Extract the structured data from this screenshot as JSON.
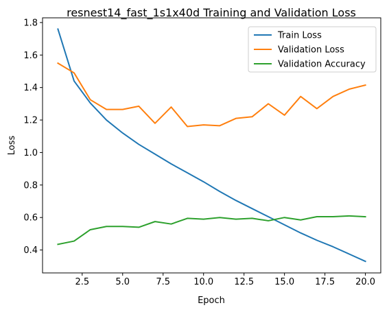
{
  "chart_data": {
    "type": "line",
    "title": "resnest14_fast_1s1x40d Training and Validation Loss",
    "xlabel": "Epoch",
    "ylabel": "Loss",
    "xlim": [
      0.05,
      20.95
    ],
    "ylim": [
      0.259,
      1.829
    ],
    "xticks": [
      2.5,
      5.0,
      7.5,
      10.0,
      12.5,
      15.0,
      17.5,
      20.0
    ],
    "xtick_labels": [
      "2.5",
      "5.0",
      "7.5",
      "10.0",
      "12.5",
      "15.0",
      "17.5",
      "20.0"
    ],
    "yticks": [
      0.4,
      0.6,
      0.8,
      1.0,
      1.2,
      1.4,
      1.6,
      1.8
    ],
    "ytick_labels": [
      "0.4",
      "0.6",
      "0.8",
      "1.0",
      "1.2",
      "1.4",
      "1.6",
      "1.8"
    ],
    "grid": false,
    "legend_position": "top-right",
    "x": [
      1,
      2,
      3,
      4,
      5,
      6,
      7,
      8,
      9,
      10,
      11,
      12,
      13,
      14,
      15,
      16,
      17,
      18,
      19,
      20
    ],
    "series": [
      {
        "name": "Train Loss",
        "color": "#1f77b4",
        "values": [
          1.76,
          1.44,
          1.305,
          1.2,
          1.12,
          1.05,
          0.99,
          0.93,
          0.875,
          0.82,
          0.76,
          0.705,
          0.655,
          0.605,
          0.555,
          0.505,
          0.46,
          0.42,
          0.375,
          0.33
        ]
      },
      {
        "name": "Validation Loss",
        "color": "#ff7f0e",
        "values": [
          1.55,
          1.49,
          1.325,
          1.265,
          1.265,
          1.285,
          1.18,
          1.28,
          1.16,
          1.17,
          1.165,
          1.21,
          1.22,
          1.3,
          1.23,
          1.345,
          1.27,
          1.345,
          1.39,
          1.415
        ]
      },
      {
        "name": "Validation Accuracy",
        "color": "#2ca02c",
        "values": [
          0.435,
          0.455,
          0.525,
          0.545,
          0.545,
          0.54,
          0.575,
          0.56,
          0.595,
          0.59,
          0.6,
          0.59,
          0.595,
          0.58,
          0.6,
          0.585,
          0.605,
          0.605,
          0.61,
          0.605
        ]
      }
    ]
  }
}
